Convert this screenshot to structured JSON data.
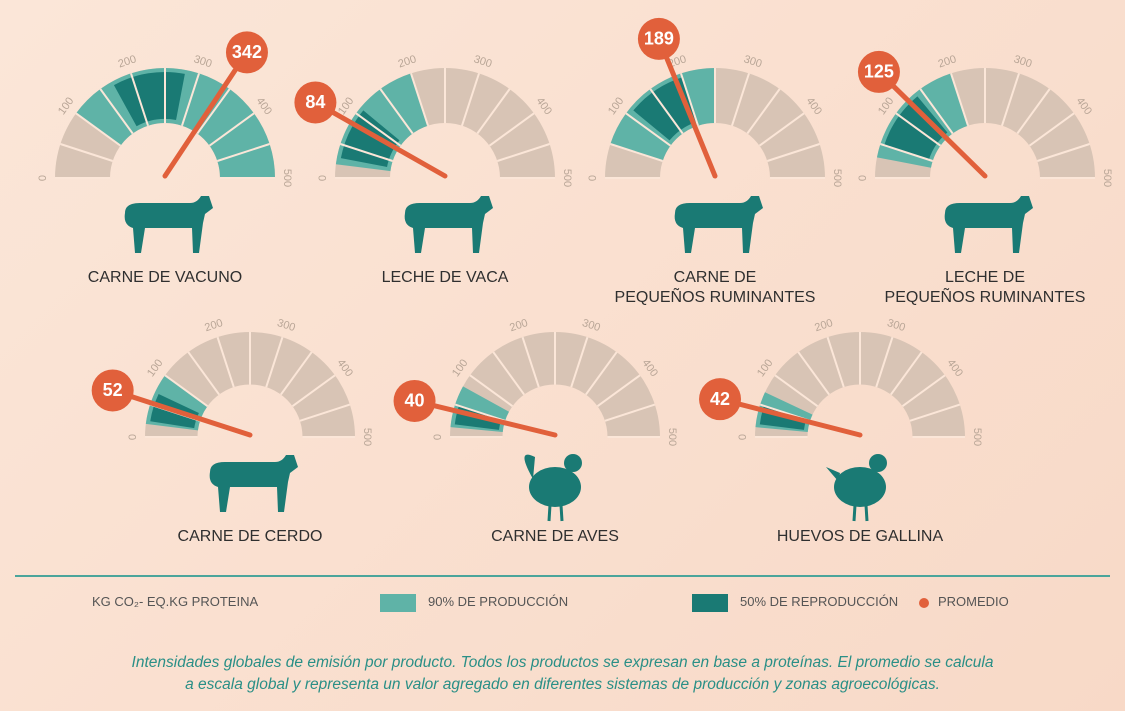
{
  "chart_data": {
    "type": "gauge",
    "categories": [
      "CARNE DE VACUNO",
      "LECHE DE VACA",
      "CARNE DE\nPEQUEÑOS RUMINANTES",
      "LECHE DE\nPEQUEÑOS RUMINANTES",
      "CARNE DE CERDO",
      "CARNE DE AVES",
      "HUEVOS DE GALLINA"
    ],
    "values": [
      342,
      84,
      189,
      125,
      52,
      40,
      42
    ],
    "average_name": "PROMEDIO",
    "average_color": "#e1603b",
    "series": [
      {
        "name": "90% DE PRODUCCIÓN",
        "color": "#5fb3a7",
        "low": [
          100,
          20,
          50,
          30,
          20,
          15,
          15
        ],
        "high": [
          500,
          200,
          250,
          200,
          100,
          80,
          70
        ]
      },
      {
        "name": "50% DE REPRODUCCIÓN",
        "color": "#1a7a74",
        "low": [
          170,
          30,
          110,
          50,
          25,
          20,
          20
        ],
        "high": [
          280,
          110,
          200,
          140,
          70,
          50,
          50
        ]
      }
    ],
    "xlim": [
      0,
      500
    ],
    "xticks": [
      0,
      100,
      200,
      300,
      400,
      500
    ],
    "unit": "KG CO₂- EQ.KG PROTEINA",
    "caption": "Intensidades globales de emisión por producto. Todos los productos se expresan en base a proteínas. El promedio se calcula\na escala global y representa un valor agregado en diferentes sistemas de producción y zonas agroecológicas."
  }
}
